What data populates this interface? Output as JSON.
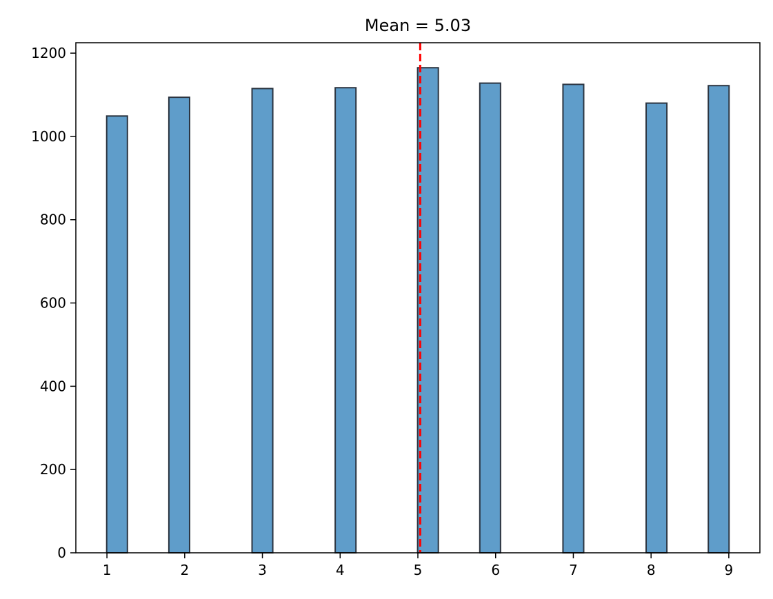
{
  "chart_data": {
    "type": "bar",
    "title": "Mean = 5.03",
    "xlabel": "",
    "ylabel": "",
    "bins": [
      {
        "x": 1.13,
        "value": 1049
      },
      {
        "x": 1.93,
        "value": 1094
      },
      {
        "x": 3.0,
        "value": 1115
      },
      {
        "x": 4.07,
        "value": 1117
      },
      {
        "x": 5.13,
        "value": 1165
      },
      {
        "x": 5.93,
        "value": 1128
      },
      {
        "x": 7.0,
        "value": 1125
      },
      {
        "x": 8.07,
        "value": 1080
      },
      {
        "x": 8.87,
        "value": 1122
      }
    ],
    "bin_width": 0.2667,
    "xlim": [
      0.6,
      9.4
    ],
    "ylim": [
      0,
      1225
    ],
    "x_ticks": [
      1,
      2,
      3,
      4,
      5,
      6,
      7,
      8,
      9
    ],
    "y_ticks": [
      0,
      200,
      400,
      600,
      800,
      1000,
      1200
    ],
    "mean_line": {
      "value": 5.03,
      "color": "#ff0000",
      "style": "dashed"
    },
    "bar_color": "#5f9dca",
    "bar_edge_color": "#2b3440",
    "grid": false,
    "legend": "none"
  }
}
